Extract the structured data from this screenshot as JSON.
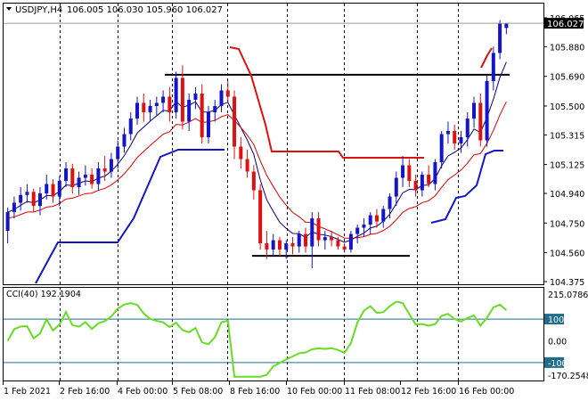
{
  "header": {
    "symbol_tf": "USDJPY,H4",
    "ohlc": "106.005 106.030 105.960 106.027"
  },
  "price_axis": {
    "labels": [
      "106.065",
      "105.880",
      "105.690",
      "105.500",
      "105.315",
      "105.125",
      "104.940",
      "104.750",
      "104.560",
      "104.375"
    ],
    "current_price": "106.027"
  },
  "cci_panel": {
    "title": "CCI(40) 192.1904",
    "top_label": "215.0786",
    "levels": [
      "100",
      "0.00",
      "-100"
    ],
    "bottom_label": "-170.2548"
  },
  "time_axis": {
    "labels": [
      "1 Feb 2021",
      "2 Feb 16:00",
      "4 Feb 00:00",
      "5 Feb 08:00",
      "8 Feb 16:00",
      "10 Feb 00:00",
      "11 Feb 08:00",
      "12 Feb 16:00",
      "16 Feb 00:00"
    ]
  },
  "colors": {
    "bull": "#1414c8",
    "bear": "#e01010",
    "ma_dark": "#000080",
    "ma_red": "#e00000",
    "cci": "#66dd22",
    "level_line": "#1f6f8b"
  },
  "chart_data": {
    "type": "candlestick",
    "symbol": "USDJPY",
    "timeframe": "H4",
    "ylim": [
      104.375,
      106.065
    ],
    "candles": [
      [
        104.7,
        104.85,
        104.62,
        104.82
      ],
      [
        104.82,
        104.92,
        104.78,
        104.88
      ],
      [
        104.88,
        104.98,
        104.83,
        104.93
      ],
      [
        104.93,
        105.0,
        104.88,
        104.95
      ],
      [
        104.95,
        104.97,
        104.82,
        104.86
      ],
      [
        104.86,
        104.98,
        104.8,
        104.94
      ],
      [
        104.94,
        105.06,
        104.9,
        105.0
      ],
      [
        105.0,
        105.03,
        104.88,
        104.92
      ],
      [
        104.92,
        105.05,
        104.86,
        105.02
      ],
      [
        105.02,
        105.14,
        104.98,
        105.1
      ],
      [
        105.1,
        105.13,
        104.94,
        104.98
      ],
      [
        104.98,
        105.08,
        104.93,
        105.04
      ],
      [
        105.04,
        105.12,
        104.99,
        105.06
      ],
      [
        105.06,
        105.1,
        104.97,
        105.0
      ],
      [
        105.0,
        105.14,
        104.96,
        105.1
      ],
      [
        105.1,
        105.18,
        105.02,
        105.08
      ],
      [
        105.08,
        105.2,
        105.04,
        105.16
      ],
      [
        105.16,
        105.28,
        105.1,
        105.24
      ],
      [
        105.24,
        105.36,
        105.2,
        105.32
      ],
      [
        105.32,
        105.46,
        105.28,
        105.42
      ],
      [
        105.42,
        105.56,
        105.38,
        105.52
      ],
      [
        105.52,
        105.58,
        105.4,
        105.46
      ],
      [
        105.46,
        105.54,
        105.4,
        105.5
      ],
      [
        105.5,
        105.56,
        105.44,
        105.52
      ],
      [
        105.52,
        105.6,
        105.46,
        105.56
      ],
      [
        105.56,
        105.62,
        105.4,
        105.46
      ],
      [
        105.46,
        105.72,
        105.42,
        105.68
      ],
      [
        105.68,
        105.76,
        105.35,
        105.4
      ],
      [
        105.4,
        105.58,
        105.34,
        105.54
      ],
      [
        105.54,
        105.62,
        105.48,
        105.58
      ],
      [
        105.58,
        105.64,
        105.26,
        105.3
      ],
      [
        105.3,
        105.5,
        105.26,
        105.46
      ],
      [
        105.46,
        105.54,
        105.4,
        105.5
      ],
      [
        105.5,
        105.64,
        105.46,
        105.6
      ],
      [
        105.6,
        105.66,
        105.52,
        105.56
      ],
      [
        105.56,
        105.6,
        105.16,
        105.24
      ],
      [
        105.24,
        105.3,
        105.1,
        105.16
      ],
      [
        105.16,
        105.22,
        105.04,
        105.08
      ],
      [
        105.08,
        105.12,
        104.9,
        104.96
      ],
      [
        104.96,
        105.0,
        104.58,
        104.62
      ],
      [
        104.62,
        104.7,
        104.52,
        104.58
      ],
      [
        104.58,
        104.68,
        104.54,
        104.64
      ],
      [
        104.64,
        104.66,
        104.54,
        104.58
      ],
      [
        104.58,
        104.64,
        104.52,
        104.62
      ],
      [
        104.62,
        104.66,
        104.55,
        104.6
      ],
      [
        104.6,
        104.7,
        104.56,
        104.68
      ],
      [
        104.68,
        104.72,
        104.56,
        104.6
      ],
      [
        104.6,
        104.82,
        104.46,
        104.78
      ],
      [
        104.78,
        104.82,
        104.6,
        104.64
      ],
      [
        104.64,
        104.7,
        104.58,
        104.66
      ],
      [
        104.66,
        104.7,
        104.6,
        104.64
      ],
      [
        104.64,
        104.66,
        104.58,
        104.6
      ],
      [
        104.6,
        104.62,
        104.56,
        104.58
      ],
      [
        104.58,
        104.7,
        104.56,
        104.68
      ],
      [
        104.68,
        104.74,
        104.62,
        104.72
      ],
      [
        104.72,
        104.78,
        104.66,
        104.74
      ],
      [
        104.74,
        104.82,
        104.68,
        104.8
      ],
      [
        104.8,
        104.84,
        104.72,
        104.76
      ],
      [
        104.76,
        104.86,
        104.72,
        104.84
      ],
      [
        104.84,
        104.94,
        104.78,
        104.92
      ],
      [
        104.92,
        105.08,
        104.86,
        105.04
      ],
      [
        105.04,
        105.18,
        104.98,
        105.12
      ],
      [
        105.12,
        105.16,
        104.98,
        105.02
      ],
      [
        105.02,
        105.06,
        104.92,
        104.96
      ],
      [
        104.96,
        105.08,
        104.92,
        105.06
      ],
      [
        105.06,
        105.12,
        104.98,
        105.0
      ],
      [
        105.0,
        105.16,
        104.96,
        105.14
      ],
      [
        105.14,
        105.34,
        105.1,
        105.32
      ],
      [
        105.32,
        105.4,
        105.26,
        105.34
      ],
      [
        105.34,
        105.38,
        105.22,
        105.26
      ],
      [
        105.26,
        105.34,
        105.2,
        105.3
      ],
      [
        105.3,
        105.46,
        105.24,
        105.42
      ],
      [
        105.42,
        105.56,
        105.36,
        105.52
      ],
      [
        105.52,
        105.58,
        105.24,
        105.28
      ],
      [
        105.28,
        105.7,
        105.24,
        105.66
      ],
      [
        105.66,
        105.88,
        105.6,
        105.84
      ],
      [
        105.84,
        106.05,
        105.8,
        106.03
      ],
      [
        106.0,
        106.03,
        105.96,
        106.03
      ]
    ],
    "levels": [
      105.7,
      104.54,
      105.16
    ],
    "cci": {
      "name": "CCI(40)",
      "last": 192.1904,
      "ylim": [
        -170.2548,
        215.0786
      ],
      "levels": [
        100,
        0,
        -100
      ]
    }
  }
}
